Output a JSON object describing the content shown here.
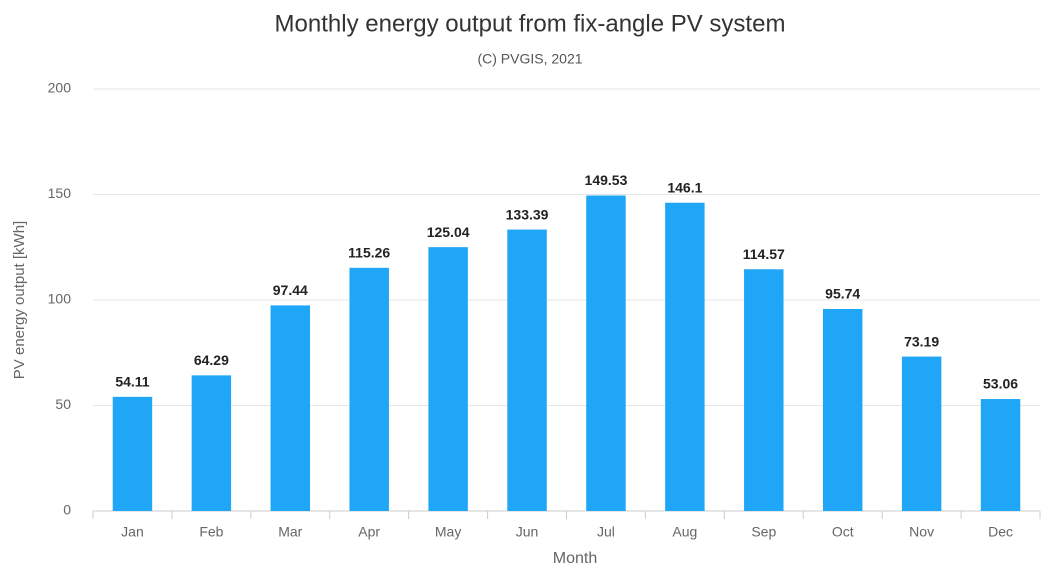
{
  "chart_data": {
    "type": "bar",
    "title": "Monthly energy output from fix-angle PV system",
    "subtitle": "(C) PVGIS, 2021",
    "x_label": "Month",
    "y_label": "PV energy output [kWh]",
    "categories": [
      "Jan",
      "Feb",
      "Mar",
      "Apr",
      "May",
      "Jun",
      "Jul",
      "Aug",
      "Sep",
      "Oct",
      "Nov",
      "Dec"
    ],
    "values": [
      54.11,
      64.29,
      97.44,
      115.26,
      125.04,
      133.39,
      149.53,
      146.1,
      114.57,
      95.74,
      73.19,
      53.06
    ],
    "color": "#1fa6f7",
    "ylim": [
      0,
      200
    ],
    "yticks": [
      0,
      50,
      100,
      150,
      200
    ],
    "grid": true
  }
}
